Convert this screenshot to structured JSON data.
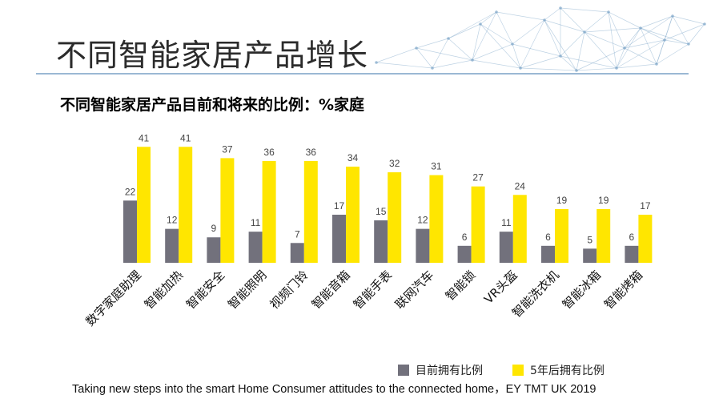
{
  "header": {
    "title": "不同智能家居产品增长",
    "subtitle": "不同智能家居产品目前和将来的比例：%家庭"
  },
  "colors": {
    "current": "#72717c",
    "future": "#ffe600",
    "header_mesh": "#7fa7c9",
    "header_line": "#9bb8d4"
  },
  "chart_data": {
    "type": "bar",
    "title": "",
    "xlabel": "",
    "ylabel": "",
    "ylim": [
      0,
      45
    ],
    "grid": false,
    "legend_position": "bottom-right",
    "categories": [
      "数字家庭助理",
      "智能加热",
      "智能安全",
      "智能照明",
      "视频门铃",
      "智能音箱",
      "智能手表",
      "联网汽车",
      "智能锁",
      "VR头盔",
      "智能洗衣机",
      "智能冰箱",
      "智能烤箱"
    ],
    "series": [
      {
        "name": "目前拥有比例",
        "values": [
          22,
          12,
          9,
          11,
          7,
          17,
          15,
          12,
          6,
          11,
          6,
          5,
          6
        ]
      },
      {
        "name": "5年后拥有比例",
        "values": [
          41,
          41,
          37,
          36,
          36,
          34,
          32,
          31,
          27,
          24,
          19,
          19,
          17
        ]
      }
    ]
  },
  "legend": {
    "current_label": "目前拥有比例",
    "future_label": "5年后拥有比例"
  },
  "footer": {
    "source": "Taking new steps into the smart Home Consumer attitudes to the connected home，EY TMT UK 2019"
  }
}
